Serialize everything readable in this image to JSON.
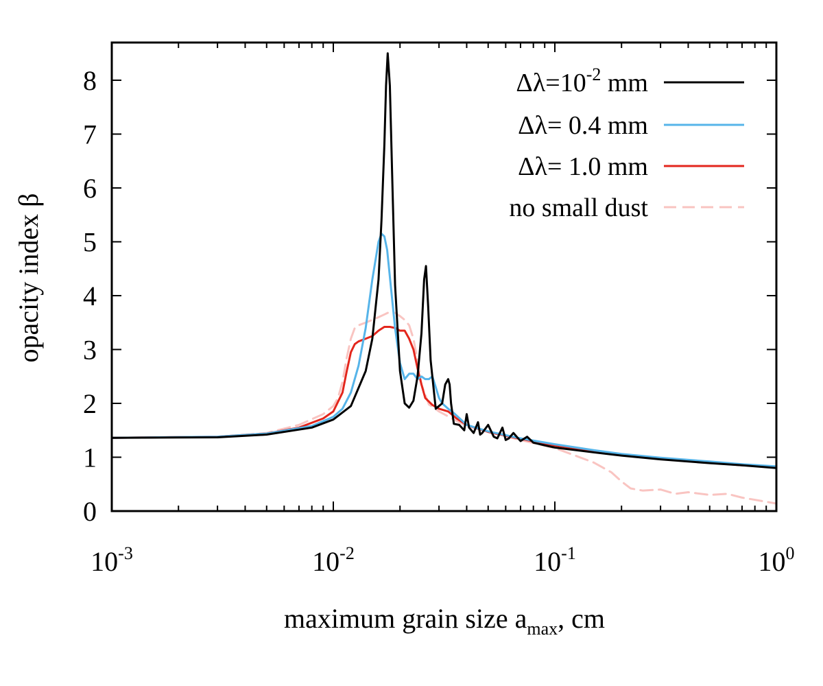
{
  "chart_data": {
    "type": "line",
    "x_scale": "log",
    "xlabel": "maximum grain size a",
    "xlabel_sub": "max",
    "xlabel_suffix": ", cm",
    "ylabel": "opacity index β",
    "xlim": [
      0.001,
      1.0
    ],
    "ylim": [
      0,
      8.7
    ],
    "y_ticks": [
      "0",
      "1",
      "2",
      "3",
      "4",
      "5",
      "6",
      "7",
      "8"
    ],
    "x_ticks": [
      {
        "base": "10",
        "exp": "-3"
      },
      {
        "base": "10",
        "exp": "-2"
      },
      {
        "base": "10",
        "exp": "-1"
      },
      {
        "base": "10",
        "exp": "0"
      }
    ],
    "legend_position": "top-right",
    "series": [
      {
        "name": "Δλ=10-2 mm",
        "legend_prefix": "Δλ=10",
        "legend_sup": "-2",
        "legend_suffix": " mm",
        "color": "#000000",
        "dash": false,
        "x": [
          0.001,
          0.003,
          0.005,
          0.008,
          0.01,
          0.012,
          0.014,
          0.015,
          0.016,
          0.0165,
          0.017,
          0.0173,
          0.0176,
          0.018,
          0.0185,
          0.019,
          0.02,
          0.021,
          0.022,
          0.023,
          0.024,
          0.025,
          0.0257,
          0.0262,
          0.0268,
          0.0275,
          0.029,
          0.031,
          0.032,
          0.033,
          0.0335,
          0.034,
          0.035,
          0.037,
          0.039,
          0.04,
          0.041,
          0.043,
          0.045,
          0.046,
          0.047,
          0.05,
          0.053,
          0.055,
          0.058,
          0.06,
          0.062,
          0.065,
          0.07,
          0.075,
          0.08,
          0.09,
          0.1,
          0.15,
          0.2,
          0.3,
          0.5,
          0.7,
          1.0
        ],
        "y": [
          1.36,
          1.37,
          1.42,
          1.55,
          1.7,
          1.95,
          2.6,
          3.2,
          4.3,
          5.4,
          6.8,
          7.9,
          8.5,
          7.9,
          6.0,
          4.2,
          2.6,
          2.0,
          1.92,
          2.05,
          2.5,
          3.3,
          4.3,
          4.55,
          3.8,
          2.8,
          1.9,
          2.0,
          2.35,
          2.45,
          2.35,
          2.0,
          1.62,
          1.6,
          1.5,
          1.8,
          1.55,
          1.45,
          1.65,
          1.42,
          1.45,
          1.6,
          1.38,
          1.35,
          1.55,
          1.32,
          1.35,
          1.45,
          1.3,
          1.38,
          1.27,
          1.22,
          1.18,
          1.09,
          1.03,
          0.96,
          0.89,
          0.85,
          0.8
        ]
      },
      {
        "name": "Δλ= 0.4 mm",
        "legend_prefix": "Δλ= 0.4  mm",
        "legend_sup": "",
        "legend_suffix": "",
        "color": "#56b4e9",
        "dash": false,
        "x": [
          0.001,
          0.003,
          0.005,
          0.008,
          0.01,
          0.011,
          0.012,
          0.013,
          0.014,
          0.015,
          0.016,
          0.0165,
          0.017,
          0.0175,
          0.018,
          0.019,
          0.02,
          0.021,
          0.022,
          0.023,
          0.024,
          0.025,
          0.026,
          0.027,
          0.028,
          0.029,
          0.03,
          0.031,
          0.033,
          0.035,
          0.04,
          0.05,
          0.07,
          0.1,
          0.15,
          0.2,
          0.3,
          0.5,
          0.7,
          1.0
        ],
        "y": [
          1.36,
          1.38,
          1.44,
          1.58,
          1.75,
          1.9,
          2.2,
          2.7,
          3.4,
          4.3,
          5.0,
          5.15,
          5.1,
          4.85,
          4.35,
          3.4,
          2.75,
          2.45,
          2.55,
          2.55,
          2.45,
          2.5,
          2.45,
          2.45,
          2.5,
          2.3,
          2.1,
          2.0,
          1.9,
          1.82,
          1.6,
          1.48,
          1.35,
          1.24,
          1.13,
          1.06,
          0.99,
          0.92,
          0.87,
          0.83
        ]
      },
      {
        "name": "Δλ= 1.0 mm",
        "legend_prefix": "Δλ= 1.0  mm",
        "legend_sup": "",
        "legend_suffix": "",
        "color": "#e3261c",
        "dash": false,
        "x": [
          0.001,
          0.003,
          0.005,
          0.007,
          0.009,
          0.01,
          0.011,
          0.0115,
          0.012,
          0.0125,
          0.013,
          0.014,
          0.015,
          0.016,
          0.017,
          0.018,
          0.019,
          0.02,
          0.021,
          0.022,
          0.023,
          0.024,
          0.025,
          0.026,
          0.028,
          0.03,
          0.033,
          0.036,
          0.04,
          0.05,
          0.07,
          0.1,
          0.15,
          0.2,
          0.3,
          0.5,
          0.7,
          1.0
        ],
        "y": [
          1.36,
          1.38,
          1.44,
          1.55,
          1.72,
          1.85,
          2.2,
          2.6,
          2.95,
          3.1,
          3.15,
          3.2,
          3.25,
          3.35,
          3.42,
          3.42,
          3.4,
          3.35,
          3.35,
          3.2,
          3.0,
          2.65,
          2.35,
          2.1,
          1.97,
          1.9,
          1.85,
          1.72,
          1.6,
          1.47,
          1.34,
          1.22,
          1.12,
          1.05,
          0.98,
          0.9,
          0.85,
          0.82
        ]
      },
      {
        "name": "no small dust",
        "legend_prefix": "no small dust",
        "legend_sup": "",
        "legend_suffix": "",
        "color": "#f9c4c1",
        "dash": true,
        "x": [
          0.001,
          0.003,
          0.005,
          0.007,
          0.009,
          0.01,
          0.0105,
          0.011,
          0.0115,
          0.012,
          0.0125,
          0.013,
          0.014,
          0.015,
          0.016,
          0.017,
          0.018,
          0.019,
          0.02,
          0.021,
          0.022,
          0.023,
          0.024,
          0.025,
          0.027,
          0.03,
          0.035,
          0.04,
          0.05,
          0.07,
          0.1,
          0.12,
          0.15,
          0.18,
          0.2,
          0.22,
          0.25,
          0.3,
          0.35,
          0.4,
          0.5,
          0.6,
          0.7,
          1.0
        ],
        "y": [
          1.36,
          1.38,
          1.45,
          1.6,
          1.8,
          1.95,
          2.1,
          2.4,
          2.85,
          3.2,
          3.4,
          3.45,
          3.5,
          3.55,
          3.6,
          3.65,
          3.7,
          3.68,
          3.62,
          3.55,
          3.45,
          3.2,
          2.8,
          2.35,
          1.98,
          1.85,
          1.7,
          1.58,
          1.47,
          1.32,
          1.17,
          1.05,
          0.9,
          0.72,
          0.55,
          0.42,
          0.38,
          0.4,
          0.32,
          0.35,
          0.3,
          0.32,
          0.25,
          0.14
        ]
      }
    ]
  }
}
